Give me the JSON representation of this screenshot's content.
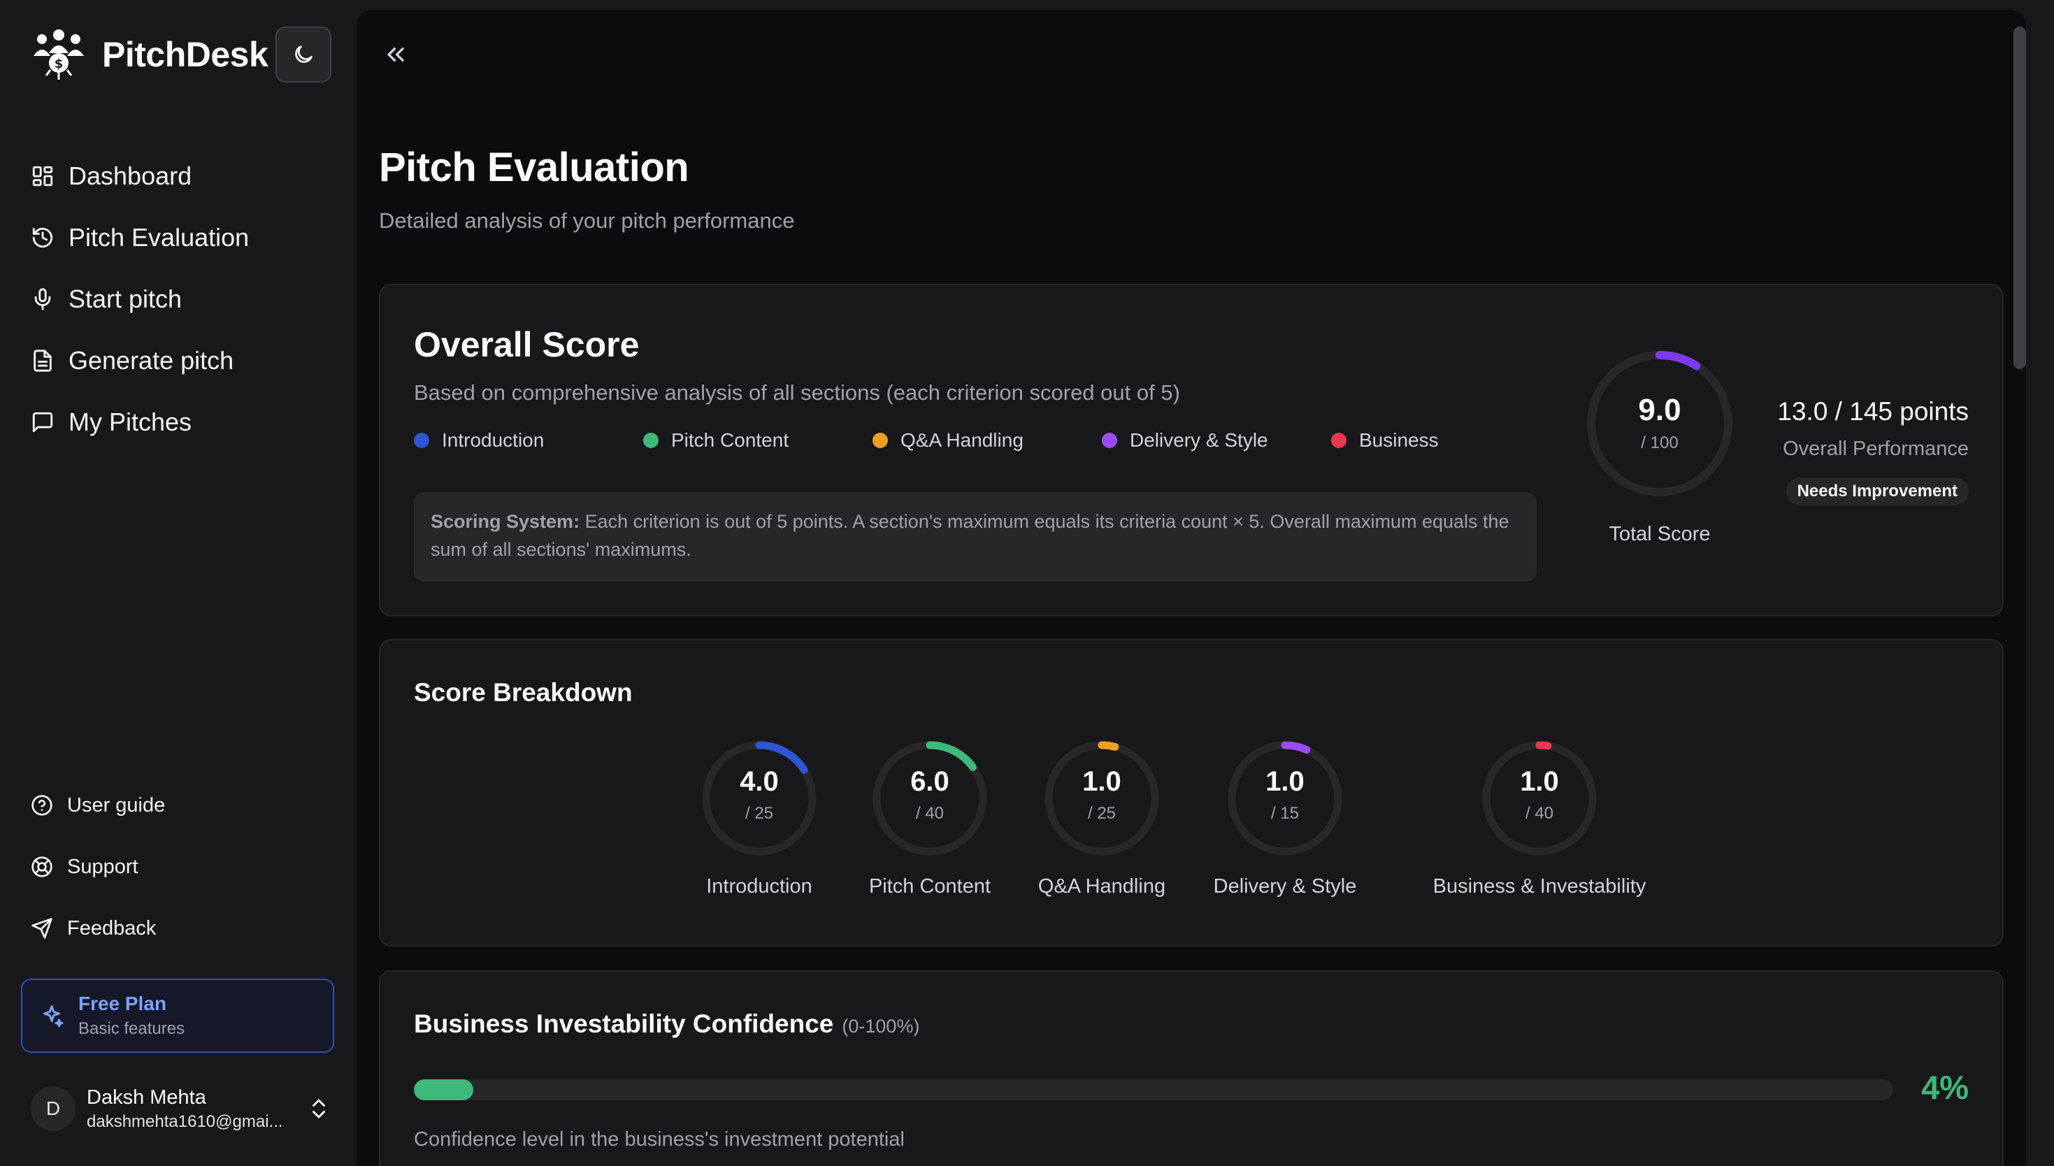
{
  "brand": {
    "name": "PitchDesk"
  },
  "nav": [
    {
      "label": "Dashboard",
      "icon": "dashboard-icon"
    },
    {
      "label": "Pitch Evaluation",
      "icon": "history-icon"
    },
    {
      "label": "Start pitch",
      "icon": "mic-icon"
    },
    {
      "label": "Generate pitch",
      "icon": "document-icon"
    },
    {
      "label": "My Pitches",
      "icon": "message-icon"
    }
  ],
  "footer_nav": [
    {
      "label": "User guide",
      "icon": "help-icon"
    },
    {
      "label": "Support",
      "icon": "lifebuoy-icon"
    },
    {
      "label": "Feedback",
      "icon": "send-icon"
    }
  ],
  "plan": {
    "title": "Free Plan",
    "subtitle": "Basic features"
  },
  "user": {
    "initial": "D",
    "name": "Daksh Mehta",
    "email": "dakshmehta1610@gmai..."
  },
  "page": {
    "title": "Pitch Evaluation",
    "subtitle": "Detailed analysis of your pitch performance"
  },
  "overall": {
    "title": "Overall Score",
    "subtitle": "Based on comprehensive analysis of all sections (each criterion scored out of 5)",
    "legend": [
      {
        "label": "Introduction",
        "color": "#2f55d4"
      },
      {
        "label": "Pitch Content",
        "color": "#3fb87a"
      },
      {
        "label": "Q&A Handling",
        "color": "#f0a020"
      },
      {
        "label": "Delivery & Style",
        "color": "#9b4cf0"
      },
      {
        "label": "Business",
        "color": "#e8384f"
      }
    ],
    "scoring_label": "Scoring System:",
    "scoring_text": " Each criterion is out of 5 points. A section's maximum equals its criteria count × 5. Overall maximum equals the sum of all sections' maximums.",
    "total_score": "9.0",
    "total_max": "/ 100",
    "total_fraction": 0.09,
    "total_color": "#7c3aed",
    "total_label": "Total Score",
    "points": "13.0 / 145 points",
    "points_label": "Overall Performance",
    "badge": "Needs Improvement"
  },
  "breakdown": {
    "title": "Score Breakdown",
    "items": [
      {
        "score": "4.0",
        "max": "/ 25",
        "fraction": 0.16,
        "label": "Introduction",
        "color": "#2f55d4"
      },
      {
        "score": "6.0",
        "max": "/ 40",
        "fraction": 0.15,
        "label": "Pitch Content",
        "color": "#3fb87a"
      },
      {
        "score": "1.0",
        "max": "/ 25",
        "fraction": 0.04,
        "label": "Q&A Handling",
        "color": "#f0a020"
      },
      {
        "score": "1.0",
        "max": "/ 15",
        "fraction": 0.067,
        "label": "Delivery & Style",
        "color": "#9b4cf0"
      },
      {
        "score": "1.0",
        "max": "/ 40",
        "fraction": 0.025,
        "label": "Business & Investability",
        "color": "#e8384f"
      }
    ]
  },
  "business": {
    "title": "Business Investability Confidence",
    "range": "(0-100%)",
    "percent": "4%",
    "fraction": 0.04,
    "description": "Confidence level in the business's investment potential"
  }
}
